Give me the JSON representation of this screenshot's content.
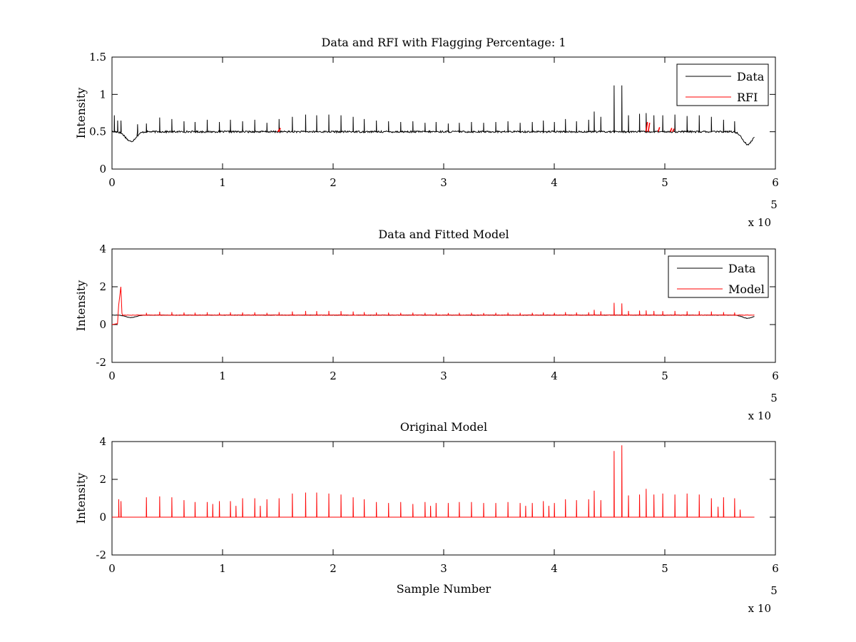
{
  "chart_data": [
    {
      "type": "line",
      "title": "Data and RFI with Flagging Percentage: 1",
      "xlabel": "",
      "ylabel": "Intensity",
      "xlim": [
        0,
        600000
      ],
      "ylim": [
        0,
        1.5
      ],
      "xticks": [
        "0",
        "1",
        "2",
        "3",
        "4",
        "5",
        "6"
      ],
      "yticks": [
        "0",
        "0.5",
        "1",
        "1.5"
      ],
      "x_multiplier": "x 10",
      "x_multiplier_exponent": "5",
      "legend": {
        "position": "top-right",
        "entries": [
          "Data",
          "RFI"
        ]
      },
      "grid": false,
      "series": [
        {
          "name": "Data",
          "color": "#000000",
          "baseline": 0.5,
          "x_range": [
            0,
            581000
          ],
          "dips": [
            [
              17000,
              0.37
            ],
            [
              575000,
              0.33
            ]
          ],
          "spikes": [
            [
              2000,
              0.72
            ],
            [
              5000,
              0.65
            ],
            [
              8000,
              0.65
            ],
            [
              23000,
              0.6
            ],
            [
              31000,
              0.61
            ],
            [
              43000,
              0.69
            ],
            [
              54000,
              0.67
            ],
            [
              65000,
              0.64
            ],
            [
              75000,
              0.63
            ],
            [
              86000,
              0.66
            ],
            [
              97000,
              0.63
            ],
            [
              107000,
              0.66
            ],
            [
              118000,
              0.64
            ],
            [
              129000,
              0.66
            ],
            [
              140000,
              0.62
            ],
            [
              151000,
              0.67
            ],
            [
              163000,
              0.7
            ],
            [
              175000,
              0.73
            ],
            [
              185000,
              0.72
            ],
            [
              196000,
              0.73
            ],
            [
              207000,
              0.72
            ],
            [
              218000,
              0.7
            ],
            [
              228000,
              0.67
            ],
            [
              239000,
              0.65
            ],
            [
              250000,
              0.64
            ],
            [
              261000,
              0.63
            ],
            [
              272000,
              0.64
            ],
            [
              283000,
              0.62
            ],
            [
              293000,
              0.63
            ],
            [
              304000,
              0.61
            ],
            [
              314000,
              0.62
            ],
            [
              325000,
              0.63
            ],
            [
              336000,
              0.62
            ],
            [
              347000,
              0.63
            ],
            [
              358000,
              0.64
            ],
            [
              369000,
              0.62
            ],
            [
              380000,
              0.63
            ],
            [
              390000,
              0.65
            ],
            [
              400000,
              0.63
            ],
            [
              410000,
              0.67
            ],
            [
              420000,
              0.64
            ],
            [
              431000,
              0.66
            ],
            [
              436000,
              0.77
            ],
            [
              442000,
              0.7
            ],
            [
              454000,
              1.12
            ],
            [
              461000,
              1.12
            ],
            [
              467000,
              0.72
            ],
            [
              477000,
              0.74
            ],
            [
              483000,
              0.75
            ],
            [
              490000,
              0.72
            ],
            [
              498000,
              0.72
            ],
            [
              509000,
              0.73
            ],
            [
              520000,
              0.71
            ],
            [
              531000,
              0.72
            ],
            [
              542000,
              0.7
            ],
            [
              553000,
              0.66
            ],
            [
              563000,
              0.64
            ]
          ]
        },
        {
          "name": "RFI",
          "color": "#ff0000",
          "points": [
            [
              150000,
              0.53
            ],
            [
              151000,
              0.55
            ],
            [
              483000,
              0.63
            ],
            [
              485000,
              0.62
            ],
            [
              494000,
              0.56
            ],
            [
              505000,
              0.55
            ],
            [
              507000,
              0.54
            ]
          ]
        }
      ]
    },
    {
      "type": "line",
      "title": "Data and Fitted Model",
      "xlabel": "",
      "ylabel": "Intensity",
      "xlim": [
        0,
        600000
      ],
      "ylim": [
        -2,
        4
      ],
      "xticks": [
        "0",
        "1",
        "2",
        "3",
        "4",
        "5",
        "6"
      ],
      "yticks": [
        "-2",
        "0",
        "2",
        "4"
      ],
      "x_multiplier": "x 10",
      "x_multiplier_exponent": "5",
      "legend": {
        "position": "top-right",
        "entries": [
          "Data",
          "Model"
        ]
      },
      "grid": false,
      "series": [
        {
          "name": "Data",
          "color": "#000000",
          "baseline": 0.5,
          "x_range": [
            0,
            581000
          ],
          "dips": [
            [
              17000,
              0.37
            ],
            [
              575000,
              0.33
            ]
          ]
        },
        {
          "name": "Model",
          "color": "#ff0000",
          "baseline": 0.5,
          "x_range": [
            0,
            581000
          ],
          "startup": [
            [
              0,
              0.0
            ],
            [
              5000,
              0.05
            ],
            [
              6000,
              1.0
            ],
            [
              8000,
              2.0
            ],
            [
              9000,
              0.6
            ]
          ],
          "spikes": [
            [
              31000,
              0.62
            ],
            [
              43000,
              0.68
            ],
            [
              54000,
              0.66
            ],
            [
              65000,
              0.64
            ],
            [
              75000,
              0.63
            ],
            [
              86000,
              0.65
            ],
            [
              97000,
              0.63
            ],
            [
              107000,
              0.65
            ],
            [
              118000,
              0.64
            ],
            [
              129000,
              0.65
            ],
            [
              140000,
              0.62
            ],
            [
              151000,
              0.66
            ],
            [
              163000,
              0.69
            ],
            [
              175000,
              0.72
            ],
            [
              185000,
              0.71
            ],
            [
              196000,
              0.72
            ],
            [
              207000,
              0.71
            ],
            [
              218000,
              0.69
            ],
            [
              228000,
              0.66
            ],
            [
              239000,
              0.64
            ],
            [
              250000,
              0.63
            ],
            [
              261000,
              0.62
            ],
            [
              272000,
              0.63
            ],
            [
              283000,
              0.62
            ],
            [
              293000,
              0.62
            ],
            [
              304000,
              0.61
            ],
            [
              314000,
              0.62
            ],
            [
              325000,
              0.62
            ],
            [
              336000,
              0.61
            ],
            [
              347000,
              0.62
            ],
            [
              358000,
              0.63
            ],
            [
              369000,
              0.62
            ],
            [
              380000,
              0.62
            ],
            [
              390000,
              0.64
            ],
            [
              400000,
              0.62
            ],
            [
              410000,
              0.66
            ],
            [
              420000,
              0.64
            ],
            [
              431000,
              0.65
            ],
            [
              436000,
              0.78
            ],
            [
              442000,
              0.7
            ],
            [
              454000,
              1.15
            ],
            [
              461000,
              1.12
            ],
            [
              467000,
              0.72
            ],
            [
              477000,
              0.74
            ],
            [
              483000,
              0.75
            ],
            [
              490000,
              0.72
            ],
            [
              498000,
              0.71
            ],
            [
              509000,
              0.72
            ],
            [
              520000,
              0.7
            ],
            [
              531000,
              0.71
            ],
            [
              542000,
              0.69
            ],
            [
              553000,
              0.66
            ],
            [
              563000,
              0.64
            ]
          ]
        }
      ]
    },
    {
      "type": "line",
      "title": "Original Model",
      "xlabel": "Sample Number",
      "ylabel": "Intensity",
      "xlim": [
        0,
        600000
      ],
      "ylim": [
        -2,
        4
      ],
      "xticks": [
        "0",
        "1",
        "2",
        "3",
        "4",
        "5",
        "6"
      ],
      "yticks": [
        "-2",
        "0",
        "2",
        "4"
      ],
      "x_multiplier": "x 10",
      "x_multiplier_exponent": "5",
      "grid": false,
      "series": [
        {
          "name": "",
          "color": "#ff0000",
          "baseline": 0.0,
          "x_range": [
            0,
            581000
          ],
          "spikes": [
            [
              6000,
              0.95
            ],
            [
              8000,
              0.85
            ],
            [
              31000,
              1.05
            ],
            [
              43000,
              1.1
            ],
            [
              54000,
              1.05
            ],
            [
              65000,
              0.9
            ],
            [
              75000,
              0.8
            ],
            [
              86000,
              0.8
            ],
            [
              91000,
              0.7
            ],
            [
              97000,
              0.85
            ],
            [
              107000,
              0.85
            ],
            [
              112000,
              0.6
            ],
            [
              118000,
              1.0
            ],
            [
              129000,
              1.0
            ],
            [
              134000,
              0.6
            ],
            [
              140000,
              0.95
            ],
            [
              151000,
              1.0
            ],
            [
              163000,
              1.25
            ],
            [
              175000,
              1.3
            ],
            [
              185000,
              1.3
            ],
            [
              196000,
              1.25
            ],
            [
              207000,
              1.2
            ],
            [
              218000,
              1.05
            ],
            [
              228000,
              0.95
            ],
            [
              239000,
              0.8
            ],
            [
              250000,
              0.75
            ],
            [
              261000,
              0.8
            ],
            [
              272000,
              0.7
            ],
            [
              283000,
              0.8
            ],
            [
              288000,
              0.6
            ],
            [
              293000,
              0.75
            ],
            [
              304000,
              0.75
            ],
            [
              314000,
              0.8
            ],
            [
              325000,
              0.8
            ],
            [
              336000,
              0.75
            ],
            [
              347000,
              0.75
            ],
            [
              358000,
              0.8
            ],
            [
              369000,
              0.75
            ],
            [
              374000,
              0.6
            ],
            [
              380000,
              0.75
            ],
            [
              390000,
              0.85
            ],
            [
              395000,
              0.6
            ],
            [
              400000,
              0.75
            ],
            [
              410000,
              0.95
            ],
            [
              420000,
              0.9
            ],
            [
              431000,
              0.95
            ],
            [
              436000,
              1.4
            ],
            [
              442000,
              0.9
            ],
            [
              454000,
              3.5
            ],
            [
              461000,
              3.8
            ],
            [
              467000,
              1.15
            ],
            [
              477000,
              1.2
            ],
            [
              483000,
              1.5
            ],
            [
              490000,
              1.2
            ],
            [
              498000,
              1.25
            ],
            [
              509000,
              1.2
            ],
            [
              520000,
              1.25
            ],
            [
              531000,
              1.2
            ],
            [
              542000,
              1.0
            ],
            [
              548000,
              0.55
            ],
            [
              553000,
              1.05
            ],
            [
              563000,
              1.0
            ],
            [
              568000,
              0.4
            ]
          ]
        }
      ]
    }
  ]
}
